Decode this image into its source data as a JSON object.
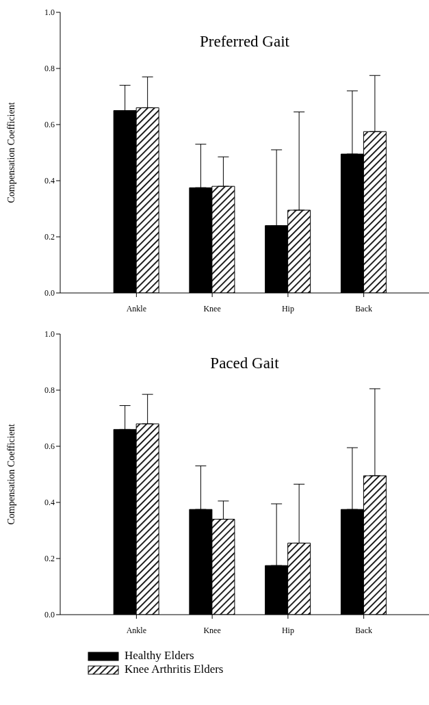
{
  "chart_data": [
    {
      "type": "bar",
      "title": "Preferred Gait",
      "ylabel": "Compensation Coefficient",
      "categories": [
        "Ankle",
        "Knee",
        "Hip",
        "Back"
      ],
      "series": [
        {
          "color": "#000000",
          "values": [
            0.65,
            0.375,
            0.24,
            0.495
          ],
          "errors": [
            [
              0.65,
              0.74
            ],
            [
              0.375,
              0.53
            ],
            [
              0.24,
              0.51
            ],
            [
              0.495,
              0.72
            ]
          ]
        },
        {
          "color": "#000000",
          "values": [
            0.66,
            0.38,
            0.295,
            0.575
          ],
          "errors": [
            [
              0.66,
              0.77
            ],
            [
              0.38,
              0.485
            ],
            [
              0.295,
              0.645
            ],
            [
              0.575,
              0.775
            ]
          ]
        }
      ],
      "ylim": [
        0,
        1
      ],
      "yticks": [
        {
          "value": 0,
          "label": "0.0"
        },
        {
          "value": 0.2,
          "label": "0.2"
        },
        {
          "value": 0.4,
          "label": "0.4"
        },
        {
          "value": 0.6,
          "label": "0.6"
        },
        {
          "value": 0.8,
          "label": "0.8"
        },
        {
          "value": 1,
          "label": "1.0"
        }
      ],
      "grid": false
    },
    {
      "type": "bar",
      "title": "Paced Gait",
      "ylabel": "Compensation Coefficient",
      "categories": [
        "Ankle",
        "Knee",
        "Hip",
        "Back"
      ],
      "series": [
        {
          "name": "Healthy Elders",
          "color": "#000000",
          "values": [
            0.66,
            0.375,
            0.175,
            0.375
          ],
          "errors": [
            [
              0.66,
              0.745
            ],
            [
              0.375,
              0.53
            ],
            [
              0.175,
              0.395
            ],
            [
              0.375,
              0.595
            ]
          ]
        },
        {
          "name": "Knee Arthritis Elders",
          "color": "#000000",
          "values": [
            0.68,
            0.34,
            0.255,
            0.495
          ],
          "errors": [
            [
              0.68,
              0.785
            ],
            [
              0.34,
              0.405
            ],
            [
              0.255,
              0.465
            ],
            [
              0.495,
              0.805
            ]
          ]
        }
      ],
      "ylim": [
        0,
        1
      ],
      "yticks": [
        {
          "value": 0,
          "label": "0.0"
        },
        {
          "value": 0.2,
          "label": "0.2"
        },
        {
          "value": 0.4,
          "label": "0.4"
        },
        {
          "value": 0.6,
          "label": "0.6"
        },
        {
          "value": 0.8,
          "label": "0.8"
        },
        {
          "value": 1,
          "label": "1.0"
        }
      ],
      "grid": false,
      "legend": "bottom left"
    }
  ]
}
